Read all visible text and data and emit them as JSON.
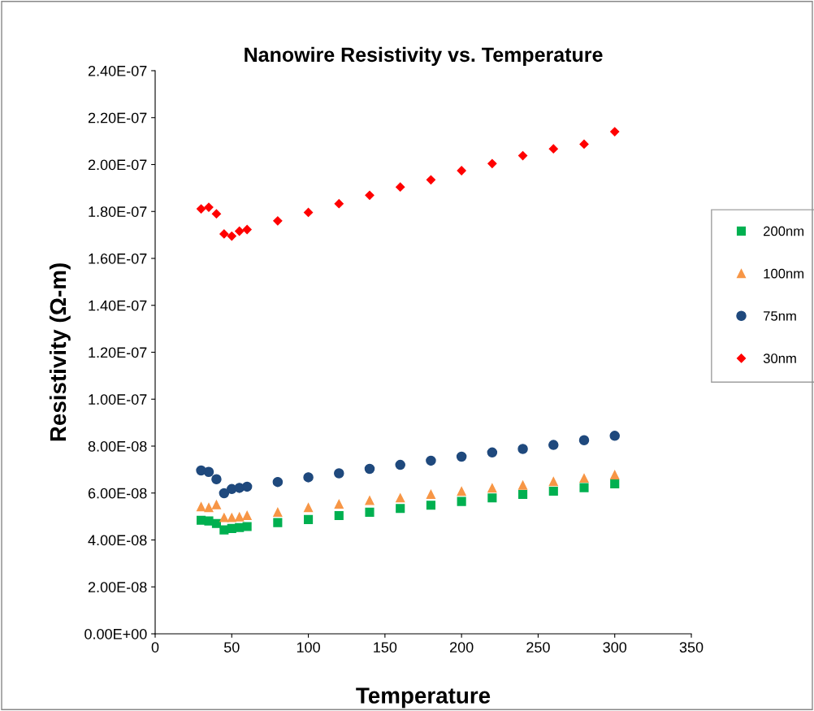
{
  "chart_data": {
    "type": "scatter",
    "title": "Nanowire Resistivity vs. Temperature",
    "xlabel": "Temperature",
    "ylabel": "Resistivity (Ω-m)",
    "x": [
      30,
      35,
      40,
      45,
      50,
      55,
      60,
      80,
      100,
      120,
      140,
      160,
      180,
      200,
      220,
      240,
      260,
      280,
      300
    ],
    "series": [
      {
        "name": "200nm",
        "color": "#00b050",
        "marker": "square",
        "values": [
          4.84e-08,
          4.81e-08,
          4.7e-08,
          4.43e-08,
          4.49e-08,
          4.53e-08,
          4.57e-08,
          4.74e-08,
          4.87e-08,
          5.04e-08,
          5.18e-08,
          5.34e-08,
          5.48e-08,
          5.64e-08,
          5.79e-08,
          5.94e-08,
          6.08e-08,
          6.23e-08,
          6.39e-08
        ]
      },
      {
        "name": "100nm",
        "color": "#f79646",
        "marker": "triangle",
        "values": [
          5.41e-08,
          5.38e-08,
          5.5e-08,
          4.95e-08,
          4.95e-08,
          4.98e-08,
          5.04e-08,
          5.18e-08,
          5.38e-08,
          5.53e-08,
          5.68e-08,
          5.79e-08,
          5.94e-08,
          6.07e-08,
          6.21e-08,
          6.33e-08,
          6.49e-08,
          6.63e-08,
          6.77e-08
        ]
      },
      {
        "name": "75nm",
        "color": "#1f497d",
        "marker": "circle",
        "values": [
          6.96e-08,
          6.9e-08,
          6.59e-08,
          5.99e-08,
          6.17e-08,
          6.22e-08,
          6.27e-08,
          6.47e-08,
          6.67e-08,
          6.84e-08,
          7.03e-08,
          7.2e-08,
          7.38e-08,
          7.55e-08,
          7.73e-08,
          7.88e-08,
          8.05e-08,
          8.25e-08,
          8.44e-08
        ]
      },
      {
        "name": "30nm",
        "color": "#ff0000",
        "marker": "diamond",
        "values": [
          1.811e-07,
          1.818e-07,
          1.79e-07,
          1.704e-07,
          1.695e-07,
          1.716e-07,
          1.723e-07,
          1.76e-07,
          1.796e-07,
          1.833e-07,
          1.869e-07,
          1.904e-07,
          1.935e-07,
          1.974e-07,
          2.004e-07,
          2.038e-07,
          2.067e-07,
          2.087e-07,
          2.14e-07
        ]
      }
    ],
    "xlim": [
      0,
      350
    ],
    "xticks": [
      0,
      50,
      100,
      150,
      200,
      250,
      300,
      350
    ],
    "ylim": [
      0,
      2.4e-07
    ],
    "yticks": [
      {
        "value": 0,
        "label": "0.00E+00"
      },
      {
        "value": 2e-08,
        "label": "2.00E-08"
      },
      {
        "value": 4e-08,
        "label": "4.00E-08"
      },
      {
        "value": 6e-08,
        "label": "6.00E-08"
      },
      {
        "value": 8e-08,
        "label": "8.00E-08"
      },
      {
        "value": 1e-07,
        "label": "1.00E-07"
      },
      {
        "value": 1.2e-07,
        "label": "1.20E-07"
      },
      {
        "value": 1.4e-07,
        "label": "1.40E-07"
      },
      {
        "value": 1.6e-07,
        "label": "1.60E-07"
      },
      {
        "value": 1.8e-07,
        "label": "1.80E-07"
      },
      {
        "value": 2e-07,
        "label": "2.00E-07"
      },
      {
        "value": 2.2e-07,
        "label": "2.20E-07"
      },
      {
        "value": 2.4e-07,
        "label": "2.40E-07"
      }
    ],
    "grid": false,
    "legend": "right"
  }
}
